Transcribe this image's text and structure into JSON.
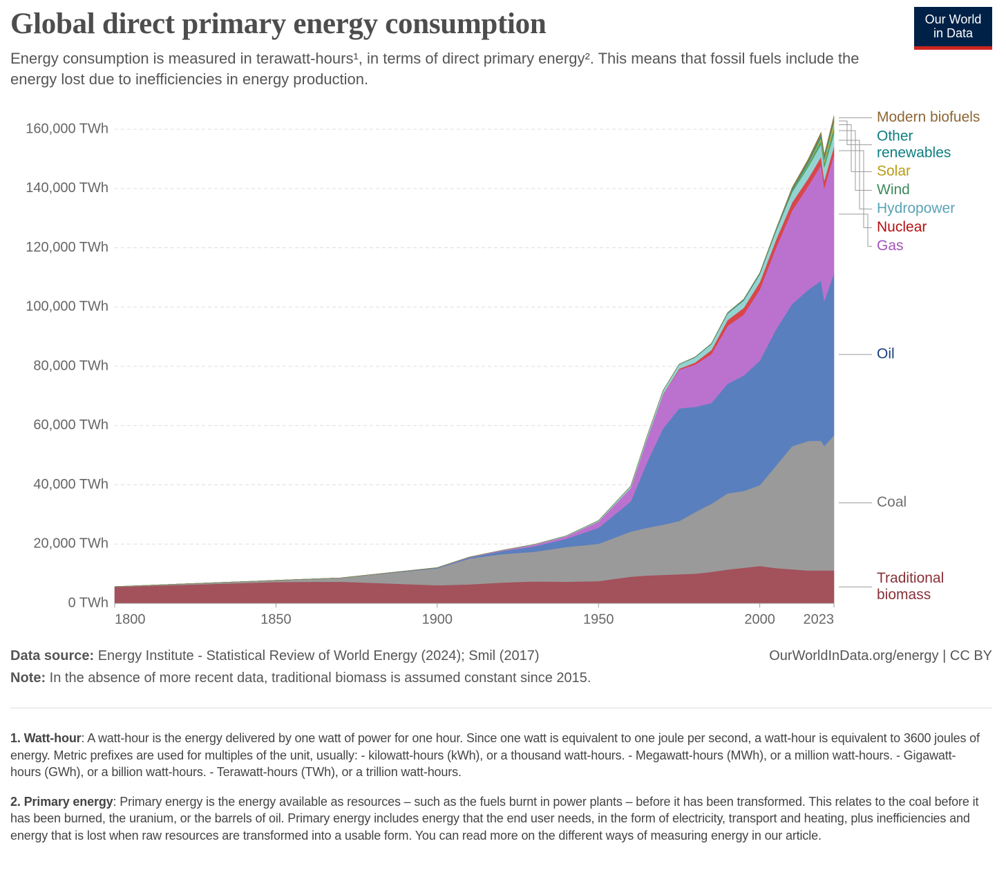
{
  "chart_data": {
    "type": "stacked-area",
    "title": "Global direct primary energy consumption",
    "subtitle": "Energy consumption is measured in terawatt-hours¹, in terms of direct primary energy². This means that fossil fuels include the energy lost due to inefficiencies in energy production.",
    "x": [
      1800,
      1850,
      1870,
      1900,
      1910,
      1920,
      1930,
      1940,
      1950,
      1960,
      1965,
      1970,
      1975,
      1980,
      1985,
      1990,
      1995,
      2000,
      2005,
      2010,
      2015,
      2019,
      2020,
      2023
    ],
    "series": [
      {
        "name": "Traditional biomass",
        "color": "#a3515b",
        "label_color": "#883039",
        "values": [
          5556,
          7200,
          7300,
          6100,
          6400,
          7000,
          7400,
          7300,
          7500,
          9000,
          9400,
          9600,
          9800,
          10000,
          10600,
          11400,
          12000,
          12600,
          11900,
          11500,
          11100,
          11100,
          11100,
          11100
        ]
      },
      {
        "name": "Coal",
        "color": "#9a9a9a",
        "label_color": "#6f6f6f",
        "values": [
          97,
          570,
          1300,
          5700,
          8700,
          9600,
          10000,
          11700,
          12600,
          15200,
          16100,
          16900,
          18000,
          20800,
          23000,
          25700,
          25900,
          27300,
          34500,
          41500,
          43700,
          43800,
          42000,
          45600
        ]
      },
      {
        "name": "Oil",
        "color": "#5a7fbe",
        "label_color": "#1a3f7a",
        "values": [
          0,
          0,
          0,
          180,
          380,
          1000,
          1800,
          2800,
          5400,
          10200,
          22000,
          32500,
          38000,
          35500,
          34000,
          37000,
          39000,
          42000,
          46000,
          48000,
          51000,
          54000,
          49000,
          54600
        ]
      },
      {
        "name": "Gas",
        "color": "#bb72cf",
        "label_color": "#a252b9",
        "values": [
          0,
          0,
          0,
          60,
          150,
          230,
          550,
          800,
          2100,
          4500,
          7800,
          11500,
          13000,
          14300,
          16500,
          19500,
          20500,
          24000,
          27500,
          31500,
          35000,
          39000,
          38000,
          40100
        ]
      },
      {
        "name": "Nuclear",
        "color": "#d9464a",
        "label_color": "#b50f0f",
        "values": [
          0,
          0,
          0,
          0,
          0,
          0,
          0,
          0,
          0,
          0,
          20,
          80,
          380,
          700,
          1400,
          2000,
          2300,
          2500,
          2700,
          2750,
          2570,
          2800,
          2700,
          2740
        ]
      },
      {
        "name": "Hydropower",
        "color": "#95d3d3",
        "label_color": "#5ba3b4",
        "values": [
          0,
          0,
          0,
          10,
          30,
          70,
          130,
          200,
          340,
          690,
          920,
          1180,
          1450,
          1740,
          1980,
          2150,
          2480,
          2640,
          2900,
          3430,
          3870,
          4220,
          4350,
          4240
        ]
      },
      {
        "name": "Wind",
        "color": "#4ca36b",
        "label_color": "#3d8b5b",
        "values": [
          0,
          0,
          0,
          0,
          0,
          0,
          0,
          0,
          0,
          0,
          0,
          0,
          0,
          0,
          0,
          0,
          8,
          31,
          104,
          342,
          831,
          1420,
          1590,
          2330
        ]
      },
      {
        "name": "Solar",
        "color": "#d4b83a",
        "label_color": "#b89c15",
        "values": [
          0,
          0,
          0,
          0,
          0,
          0,
          0,
          0,
          0,
          0,
          0,
          0,
          0,
          0,
          0,
          0,
          0,
          0,
          4,
          32,
          256,
          700,
          850,
          1640
        ]
      },
      {
        "name": "Other renewables",
        "color": "#2f9a9a",
        "label_color": "#0d7e82",
        "values": [
          0,
          0,
          0,
          0,
          0,
          0,
          0,
          0,
          0,
          20,
          40,
          60,
          100,
          150,
          220,
          290,
          360,
          400,
          450,
          560,
          720,
          850,
          860,
          880
        ]
      },
      {
        "name": "Modern biofuels",
        "color": "#8a7a40",
        "label_color": "#8c6634",
        "values": [
          0,
          0,
          0,
          0,
          0,
          0,
          0,
          0,
          0,
          0,
          0,
          0,
          0,
          0,
          0,
          70,
          110,
          110,
          220,
          680,
          860,
          1100,
          1030,
          1300
        ]
      }
    ],
    "xlim": [
      1800,
      2023
    ],
    "ylim": [
      0,
      165000
    ],
    "xticks": [
      1800,
      1850,
      1900,
      1950,
      2000,
      2023
    ],
    "yticks": [
      {
        "value": 0,
        "label": "0 TWh"
      },
      {
        "value": 20000,
        "label": "20,000 TWh"
      },
      {
        "value": 40000,
        "label": "40,000 TWh"
      },
      {
        "value": 60000,
        "label": "60,000 TWh"
      },
      {
        "value": 80000,
        "label": "80,000 TWh"
      },
      {
        "value": 100000,
        "label": "100,000 TWh"
      },
      {
        "value": 120000,
        "label": "120,000 TWh"
      },
      {
        "value": 140000,
        "label": "140,000 TWh"
      },
      {
        "value": 160000,
        "label": "160,000 TWh"
      }
    ],
    "grid": true
  },
  "logo": [
    "Our World",
    "in Data"
  ],
  "footer": {
    "source_label": "Data source:",
    "source": "Energy Institute - Statistical Review of World Energy (2024); Smil (2017)",
    "url": "OurWorldInData.org/energy",
    "license": "| CC BY",
    "note_label": "Note:",
    "note": "In the absence of more recent data, traditional biomass is assumed constant since 2015."
  },
  "footnotes": [
    {
      "label": "1. Watt-hour",
      "text": ": A watt-hour is the energy delivered by one watt of power for one hour. Since one watt is equivalent to one joule per second, a watt-hour is equivalent to 3600 joules of energy. Metric prefixes are used for multiples of the unit, usually: - kilowatt-hours (kWh), or a thousand watt-hours. - Megawatt-hours (MWh), or a million watt-hours. - Gigawatt-hours (GWh), or a billion watt-hours. - Terawatt-hours (TWh), or a trillion watt-hours."
    },
    {
      "label": "2. Primary energy",
      "text": ": Primary energy is the energy available as resources – such as the fuels burnt in power plants – before it has been transformed. This relates to the coal before it has been burned, the uranium, or the barrels of oil. Primary energy includes energy that the end user needs, in the form of electricity, transport and heating, plus inefficiencies and energy that is lost when raw resources are transformed into a usable form. You can read more on the different ways of measuring energy in our article."
    }
  ]
}
